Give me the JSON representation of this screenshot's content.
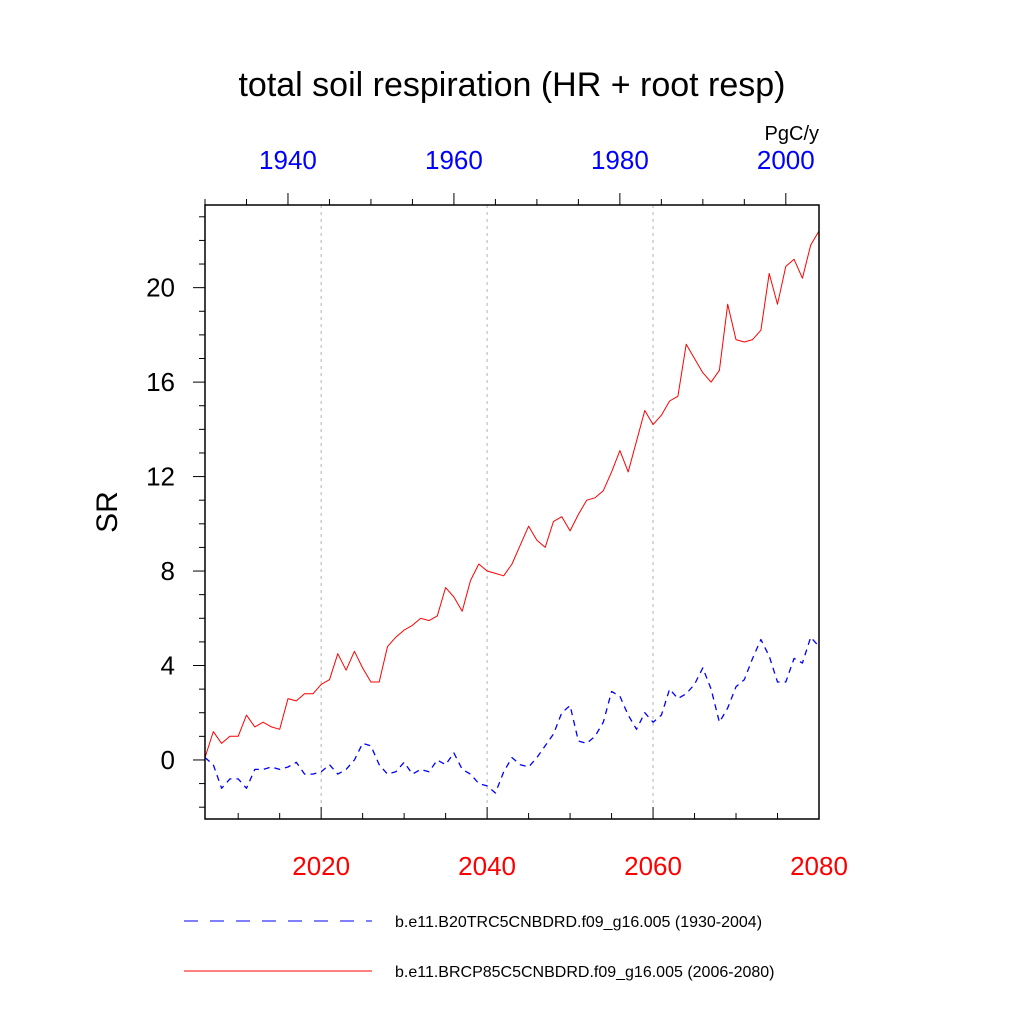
{
  "chart_data": {
    "type": "line",
    "title": "total soil respiration (HR + root resp)",
    "ylabel": "SR",
    "units": "PgC/y",
    "xlim_bottom": [
      2006,
      2080
    ],
    "xlim_top": [
      1930,
      2004
    ],
    "ylim": [
      -2.5,
      23.5
    ],
    "grid": "vertical dashed at bottom-axis major ticks",
    "legend_position": "bottom",
    "bottom_axis": {
      "ticks": [
        2020,
        2040,
        2060,
        2080
      ],
      "tick_labels": [
        "2020",
        "2040",
        "2060",
        "2080"
      ],
      "color": "#ff0000"
    },
    "top_axis": {
      "ticks": [
        1940,
        1960,
        1980,
        2000
      ],
      "tick_labels": [
        "1940",
        "1960",
        "1980",
        "2000"
      ],
      "color": "#0000ff"
    },
    "y_axis": {
      "ticks": [
        0,
        4,
        8,
        12,
        16,
        20
      ],
      "tick_labels": [
        "0",
        "4",
        "8",
        "12",
        "16",
        "20"
      ]
    },
    "series": [
      {
        "name": "b.e11.B20TRC5CNBDRD.f09_g16.005 (1930-2004)",
        "axis": "top",
        "color": "#0000ff",
        "style": "dashed",
        "x": [
          1930,
          1931,
          1932,
          1933,
          1934,
          1935,
          1936,
          1937,
          1938,
          1939,
          1940,
          1941,
          1942,
          1943,
          1944,
          1945,
          1946,
          1947,
          1948,
          1949,
          1950,
          1951,
          1952,
          1953,
          1954,
          1955,
          1956,
          1957,
          1958,
          1959,
          1960,
          1961,
          1962,
          1963,
          1964,
          1965,
          1966,
          1967,
          1968,
          1969,
          1970,
          1971,
          1972,
          1973,
          1974,
          1975,
          1976,
          1977,
          1978,
          1979,
          1980,
          1981,
          1982,
          1983,
          1984,
          1985,
          1986,
          1987,
          1988,
          1989,
          1990,
          1991,
          1992,
          1993,
          1994,
          1995,
          1996,
          1997,
          1998,
          1999,
          2000,
          2001,
          2002,
          2003,
          2004
        ],
        "y": [
          0.1,
          -0.2,
          -1.2,
          -0.8,
          -0.8,
          -1.2,
          -0.4,
          -0.4,
          -0.3,
          -0.4,
          -0.3,
          -0.1,
          -0.6,
          -0.6,
          -0.5,
          -0.2,
          -0.6,
          -0.4,
          0.0,
          0.7,
          0.6,
          -0.2,
          -0.6,
          -0.5,
          -0.1,
          -0.6,
          -0.4,
          -0.5,
          0.0,
          -0.2,
          0.3,
          -0.4,
          -0.6,
          -1.0,
          -1.1,
          -1.4,
          -0.5,
          0.1,
          -0.2,
          -0.3,
          0.1,
          0.6,
          1.1,
          2.0,
          2.3,
          0.8,
          0.7,
          1.0,
          1.6,
          2.9,
          2.7,
          1.9,
          1.3,
          2.0,
          1.6,
          1.9,
          3.0,
          2.6,
          2.8,
          3.2,
          3.9,
          3.0,
          1.6,
          2.2,
          3.1,
          3.4,
          4.3,
          5.1,
          4.4,
          3.3,
          3.3,
          4.3,
          4.1,
          5.2,
          4.8
        ]
      },
      {
        "name": "b.e11.BRCP85C5CNBDRD.f09_g16.005 (2006-2080)",
        "axis": "bottom",
        "color": "#ff0000",
        "style": "solid",
        "x": [
          2006,
          2007,
          2008,
          2009,
          2010,
          2011,
          2012,
          2013,
          2014,
          2015,
          2016,
          2017,
          2018,
          2019,
          2020,
          2021,
          2022,
          2023,
          2024,
          2025,
          2026,
          2027,
          2028,
          2029,
          2030,
          2031,
          2032,
          2033,
          2034,
          2035,
          2036,
          2037,
          2038,
          2039,
          2040,
          2041,
          2042,
          2043,
          2044,
          2045,
          2046,
          2047,
          2048,
          2049,
          2050,
          2051,
          2052,
          2053,
          2054,
          2055,
          2056,
          2057,
          2058,
          2059,
          2060,
          2061,
          2062,
          2063,
          2064,
          2065,
          2066,
          2067,
          2068,
          2069,
          2070,
          2071,
          2072,
          2073,
          2074,
          2075,
          2076,
          2077,
          2078,
          2079,
          2080
        ],
        "y": [
          0.1,
          1.2,
          0.7,
          1.0,
          1.0,
          1.9,
          1.4,
          1.6,
          1.4,
          1.3,
          2.6,
          2.5,
          2.8,
          2.8,
          3.2,
          3.4,
          4.5,
          3.8,
          4.6,
          3.9,
          3.3,
          3.3,
          4.8,
          5.2,
          5.5,
          5.7,
          6.0,
          5.9,
          6.1,
          7.3,
          6.9,
          6.3,
          7.6,
          8.3,
          8.0,
          7.9,
          7.8,
          8.3,
          9.1,
          9.9,
          9.3,
          9.0,
          10.1,
          10.3,
          9.7,
          10.4,
          11.0,
          11.1,
          11.4,
          12.2,
          13.1,
          12.2,
          13.5,
          14.8,
          14.2,
          14.6,
          15.2,
          15.4,
          17.6,
          17.0,
          16.4,
          16.0,
          16.5,
          19.3,
          17.8,
          17.7,
          17.8,
          18.2,
          20.6,
          19.3,
          20.9,
          21.2,
          20.4,
          21.8,
          22.4
        ]
      }
    ]
  },
  "legend": {
    "entries": [
      {
        "label": "b.e11.B20TRC5CNBDRD.f09_g16.005 (1930-2004)",
        "color": "#0000ff",
        "style": "dashed"
      },
      {
        "label": "b.e11.BRCP85C5CNBDRD.f09_g16.005 (2006-2080)",
        "color": "#ff0000",
        "style": "solid"
      }
    ]
  }
}
